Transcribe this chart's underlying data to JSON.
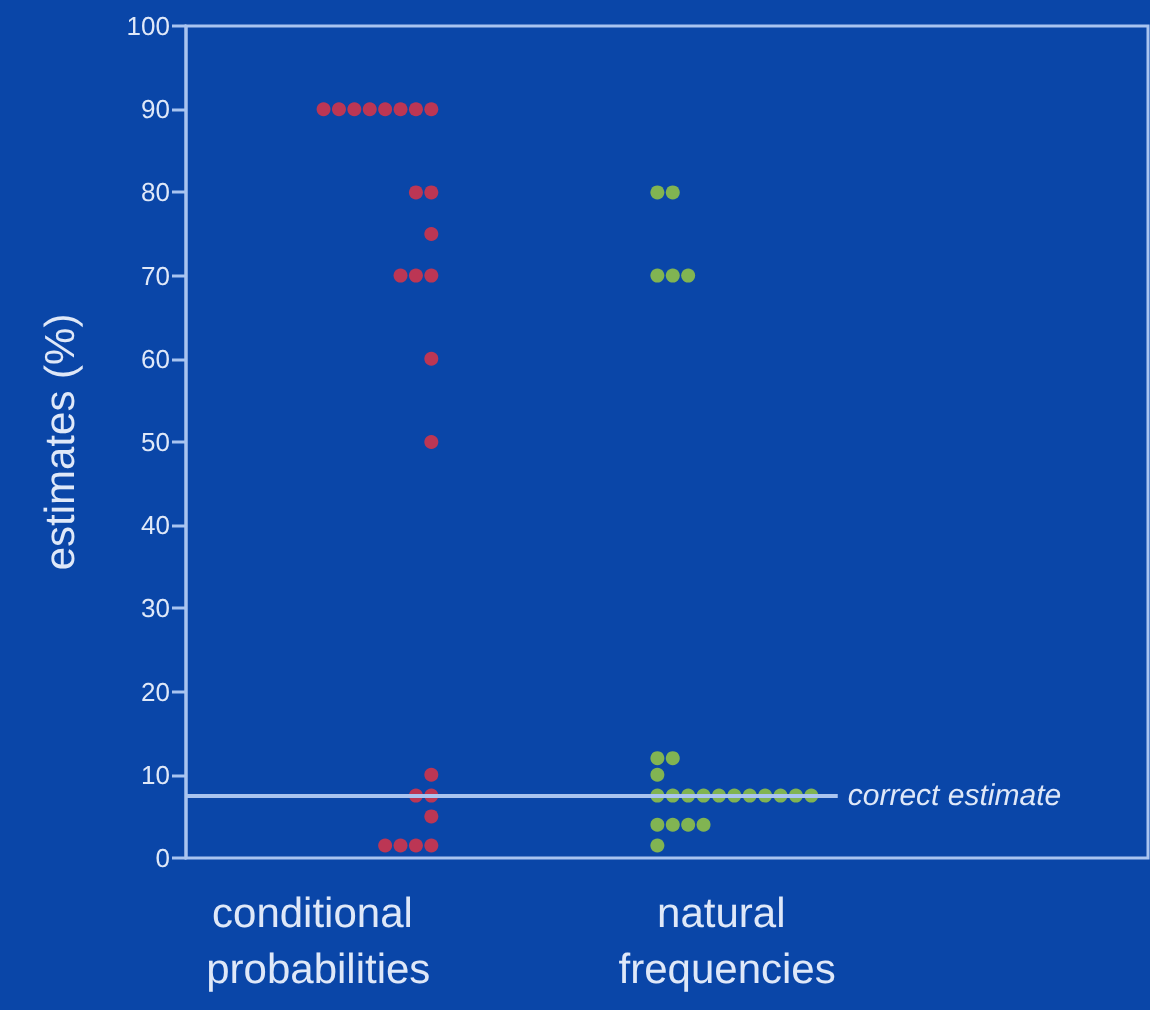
{
  "chart_data": {
    "type": "scatter",
    "ylabel": "estimates (%)",
    "categories": [
      "conditional probabilities",
      "natural frequencies"
    ],
    "series": [
      {
        "color": "#e8323e",
        "x": [
          "conditional probabilities",
          "conditional probabilities",
          "conditional probabilities",
          "conditional probabilities",
          "conditional probabilities",
          "conditional probabilities",
          "conditional probabilities",
          "conditional probabilities",
          "conditional probabilities",
          "conditional probabilities",
          "conditional probabilities",
          "conditional probabilities",
          "conditional probabilities",
          "conditional probabilities",
          "conditional probabilities",
          "conditional probabilities",
          "conditional probabilities",
          "conditional probabilities",
          "conditional probabilities",
          "conditional probabilities",
          "conditional probabilities",
          "conditional probabilities",
          "conditional probabilities",
          "conditional probabilities"
        ],
        "values": [
          90,
          90,
          90,
          90,
          90,
          90,
          90,
          90,
          80,
          80,
          75,
          70,
          70,
          70,
          60,
          50,
          10,
          7.5,
          7.5,
          5,
          1.5,
          1.5,
          1.5,
          1.5
        ]
      },
      {
        "color": "#9fd03c",
        "x": [
          "natural frequencies",
          "natural frequencies",
          "natural frequencies",
          "natural frequencies",
          "natural frequencies",
          "natural frequencies",
          "natural frequencies",
          "natural frequencies",
          "natural frequencies",
          "natural frequencies",
          "natural frequencies",
          "natural frequencies",
          "natural frequencies",
          "natural frequencies",
          "natural frequencies",
          "natural frequencies",
          "natural frequencies",
          "natural frequencies",
          "natural frequencies",
          "natural frequencies",
          "natural frequencies",
          "natural frequencies",
          "natural frequencies",
          "natural frequencies"
        ],
        "values": [
          80,
          80,
          70,
          70,
          70,
          12,
          12,
          10,
          7.5,
          7.5,
          7.5,
          7.5,
          7.5,
          7.5,
          7.5,
          7.5,
          7.5,
          7.5,
          7.5,
          4,
          4,
          4,
          4,
          1.5
        ]
      }
    ],
    "ref_lines": [
      {
        "axis": "y",
        "value": 7.5,
        "label": "correct estimate",
        "color": "#a9c4f0"
      }
    ],
    "ylim": [
      0,
      100
    ],
    "yticks": [
      0,
      10,
      20,
      30,
      40,
      50,
      60,
      70,
      80,
      90,
      100
    ],
    "grid": false,
    "marker": "circle"
  }
}
